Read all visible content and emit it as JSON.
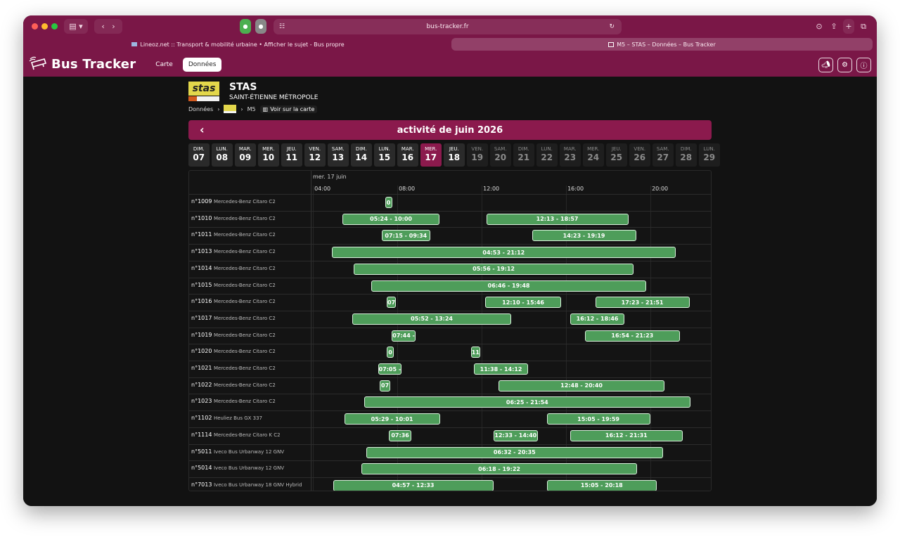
{
  "browser": {
    "url": "bus-tracker.fr",
    "tabs": [
      {
        "label": "Lineoz.net :: Transport & mobilité urbaine • Afficher le sujet - Bus propre",
        "active": false
      },
      {
        "label": "M5 – STAS – Données – Bus Tracker",
        "active": true
      }
    ]
  },
  "app": {
    "title": "Bus Tracker",
    "nav": [
      {
        "label": "Carte",
        "active": false
      },
      {
        "label": "Données",
        "active": true
      }
    ],
    "icons": [
      "megaphone-icon",
      "gear-icon",
      "info-icon"
    ]
  },
  "network": {
    "name": "STAS",
    "subtitle": "SAINT-ÉTIENNE MÉTROPOLE",
    "logo_text": "stas"
  },
  "breadcrumb": {
    "root": "Données",
    "line": "M5",
    "map_link": "Voir sur la carte"
  },
  "calendar": {
    "title": "activité de juin 2026",
    "days": [
      {
        "name": "DIM.",
        "num": "07",
        "state": "past"
      },
      {
        "name": "LUN.",
        "num": "08",
        "state": "past"
      },
      {
        "name": "MAR.",
        "num": "09",
        "state": "past"
      },
      {
        "name": "MER.",
        "num": "10",
        "state": "past"
      },
      {
        "name": "JEU.",
        "num": "11",
        "state": "past"
      },
      {
        "name": "VEN.",
        "num": "12",
        "state": "past"
      },
      {
        "name": "SAM.",
        "num": "13",
        "state": "past"
      },
      {
        "name": "DIM.",
        "num": "14",
        "state": "past"
      },
      {
        "name": "LUN.",
        "num": "15",
        "state": "past"
      },
      {
        "name": "MAR.",
        "num": "16",
        "state": "past"
      },
      {
        "name": "MER.",
        "num": "17",
        "state": "selected"
      },
      {
        "name": "JEU.",
        "num": "18",
        "state": "past"
      },
      {
        "name": "VEN.",
        "num": "19",
        "state": "future"
      },
      {
        "name": "SAM.",
        "num": "20",
        "state": "future"
      },
      {
        "name": "DIM.",
        "num": "21",
        "state": "future"
      },
      {
        "name": "LUN.",
        "num": "22",
        "state": "future"
      },
      {
        "name": "MAR.",
        "num": "23",
        "state": "future"
      },
      {
        "name": "MER.",
        "num": "24",
        "state": "future"
      },
      {
        "name": "JEU.",
        "num": "25",
        "state": "future"
      },
      {
        "name": "VEN.",
        "num": "26",
        "state": "future"
      },
      {
        "name": "SAM.",
        "num": "27",
        "state": "future"
      },
      {
        "name": "DIM.",
        "num": "28",
        "state": "future"
      },
      {
        "name": "LUN.",
        "num": "29",
        "state": "future"
      }
    ]
  },
  "timeline": {
    "date_label": "mer. 17 juin",
    "hours": [
      "04:00",
      "08:00",
      "12:00",
      "16:00",
      "20:00"
    ],
    "vehicles": [
      {
        "id": "n°1009",
        "model": "Mercedes-Benz Citaro C2",
        "trips": [
          {
            "start": "07:25",
            "end": "07:40",
            "label": "0"
          }
        ]
      },
      {
        "id": "n°1010",
        "model": "Mercedes-Benz Citaro C2",
        "trips": [
          {
            "start": "05:24",
            "end": "10:00",
            "label": "05:24 - 10:00"
          },
          {
            "start": "12:13",
            "end": "18:57",
            "label": "12:13 - 18:57"
          }
        ]
      },
      {
        "id": "n°1011",
        "model": "Mercedes-Benz Citaro C2",
        "trips": [
          {
            "start": "07:15",
            "end": "09:34",
            "label": "07:15 - 09:34"
          },
          {
            "start": "14:23",
            "end": "19:19",
            "label": "14:23 - 19:19"
          }
        ]
      },
      {
        "id": "n°1013",
        "model": "Mercedes-Benz Citaro C2",
        "trips": [
          {
            "start": "04:53",
            "end": "21:12",
            "label": "04:53 - 21:12"
          }
        ]
      },
      {
        "id": "n°1014",
        "model": "Mercedes-Benz Citaro C2",
        "trips": [
          {
            "start": "05:56",
            "end": "19:12",
            "label": "05:56 - 19:12"
          }
        ]
      },
      {
        "id": "n°1015",
        "model": "Mercedes-Benz Citaro C2",
        "trips": [
          {
            "start": "06:46",
            "end": "19:48",
            "label": "06:46 - 19:48"
          }
        ]
      },
      {
        "id": "n°1016",
        "model": "Mercedes-Benz Citaro C2",
        "trips": [
          {
            "start": "07:30",
            "end": "07:56",
            "label": "07"
          },
          {
            "start": "12:10",
            "end": "15:46",
            "label": "12:10 - 15:46"
          },
          {
            "start": "17:23",
            "end": "21:51",
            "label": "17:23 - 21:51"
          }
        ]
      },
      {
        "id": "n°1017",
        "model": "Mercedes-Benz Citaro C2",
        "trips": [
          {
            "start": "05:52",
            "end": "13:24",
            "label": "05:52 - 13:24"
          },
          {
            "start": "16:12",
            "end": "18:46",
            "label": "16:12 - 18:46"
          }
        ]
      },
      {
        "id": "n°1019",
        "model": "Mercedes-Benz Citaro C2",
        "trips": [
          {
            "start": "07:44",
            "end": "08:52",
            "label": "07:44 -"
          },
          {
            "start": "16:54",
            "end": "21:23",
            "label": "16:54 - 21:23"
          }
        ]
      },
      {
        "id": "n°1020",
        "model": "Mercedes-Benz Citaro C2",
        "trips": [
          {
            "start": "07:30",
            "end": "07:50",
            "label": "0"
          },
          {
            "start": "11:30",
            "end": "11:55",
            "label": "11"
          }
        ]
      },
      {
        "id": "n°1021",
        "model": "Mercedes-Benz Citaro C2",
        "trips": [
          {
            "start": "07:05",
            "end": "08:12",
            "label": "07:05 -"
          },
          {
            "start": "11:38",
            "end": "14:12",
            "label": "11:38 - 14:12"
          }
        ]
      },
      {
        "id": "n°1022",
        "model": "Mercedes-Benz Citaro C2",
        "trips": [
          {
            "start": "07:10",
            "end": "07:40",
            "label": "07"
          },
          {
            "start": "12:48",
            "end": "20:40",
            "label": "12:48 - 20:40"
          }
        ]
      },
      {
        "id": "n°1023",
        "model": "Mercedes-Benz Citaro C2",
        "trips": [
          {
            "start": "06:25",
            "end": "21:54",
            "label": "06:25 - 21:54"
          }
        ]
      },
      {
        "id": "n°1102",
        "model": "Heuliez Bus GX 337",
        "trips": [
          {
            "start": "05:29",
            "end": "10:01",
            "label": "05:29 - 10:01"
          },
          {
            "start": "15:05",
            "end": "19:59",
            "label": "15:05 - 19:59"
          }
        ]
      },
      {
        "id": "n°1114",
        "model": "Mercedes-Benz Citaro K C2",
        "trips": [
          {
            "start": "07:36",
            "end": "08:40",
            "label": "07:36"
          },
          {
            "start": "12:33",
            "end": "14:40",
            "label": "12:33 - 14:40"
          },
          {
            "start": "16:12",
            "end": "21:31",
            "label": "16:12 - 21:31"
          }
        ]
      },
      {
        "id": "n°5011",
        "model": "Iveco Bus Urbanway 12 GNV",
        "trips": [
          {
            "start": "06:32",
            "end": "20:35",
            "label": "06:32 - 20:35"
          }
        ]
      },
      {
        "id": "n°5014",
        "model": "Iveco Bus Urbanway 12 GNV",
        "trips": [
          {
            "start": "06:18",
            "start_note": "",
            "end": "19:22",
            "label": "06:18 - 19:22"
          }
        ]
      },
      {
        "id": "n°7013",
        "model": "Iveco Bus Urbanway 18 GNV Hybrid",
        "trips": [
          {
            "start": "04:57",
            "end": "12:33",
            "label": "04:57 - 12:33"
          },
          {
            "start": "15:05",
            "end": "20:18",
            "label": "15:05 - 20:18"
          }
        ]
      }
    ]
  }
}
